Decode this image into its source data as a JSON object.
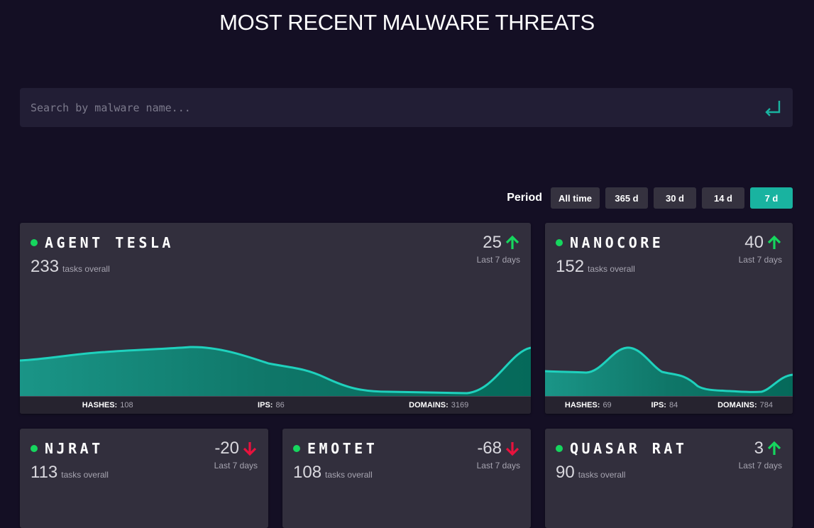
{
  "page_title": "MOST RECENT MALWARE THREATS",
  "search": {
    "placeholder": "Search by malware name..."
  },
  "period": {
    "label": "Period",
    "options": [
      "All time",
      "365 d",
      "30 d",
      "14 d",
      "7 d"
    ],
    "selected": "7 d"
  },
  "colors": {
    "accent": "#19b3a0",
    "up": "#16d65e",
    "down": "#e8123d",
    "status_dot": "#16d65e"
  },
  "cards": [
    {
      "name": "AGENT TESLA",
      "tasks": "233",
      "tasks_label": "tasks overall",
      "change": "25",
      "direction": "up",
      "change_period": "Last 7 days",
      "stats": {
        "hashes_label": "HASHES:",
        "hashes": "108",
        "ips_label": "IPS:",
        "ips": "86",
        "domains_label": "DOMAINS:",
        "domains": "3169"
      }
    },
    {
      "name": "NANOCORE",
      "tasks": "152",
      "tasks_label": "tasks overall",
      "change": "40",
      "direction": "up",
      "change_period": "Last 7 days",
      "stats": {
        "hashes_label": "HASHES:",
        "hashes": "69",
        "ips_label": "IPS:",
        "ips": "84",
        "domains_label": "DOMAINS:",
        "domains": "784"
      }
    },
    {
      "name": "NJRAT",
      "tasks": "113",
      "tasks_label": "tasks overall",
      "change": "-20",
      "direction": "down",
      "change_period": "Last 7 days"
    },
    {
      "name": "EMOTET",
      "tasks": "108",
      "tasks_label": "tasks overall",
      "change": "-68",
      "direction": "down",
      "change_period": "Last 7 days"
    },
    {
      "name": "QUASAR RAT",
      "tasks": "90",
      "tasks_label": "tasks overall",
      "change": "3",
      "direction": "up",
      "change_period": "Last 7 days"
    }
  ]
}
